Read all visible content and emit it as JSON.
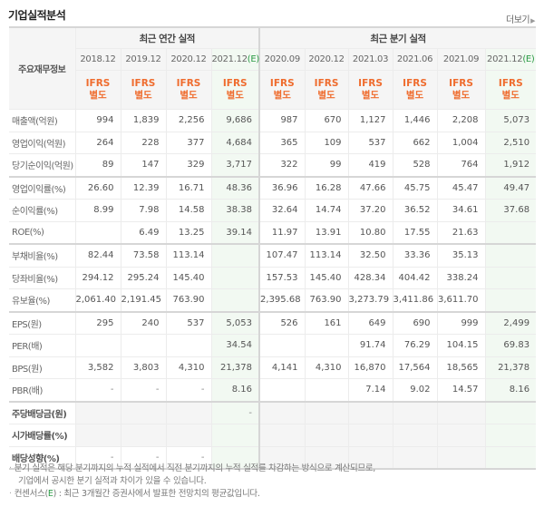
{
  "section": {
    "title": "기업실적분석",
    "more_label": "더보기",
    "more_icon": "triangle-right-icon"
  },
  "table": {
    "corner_label": "주요재무정보",
    "groups": {
      "annual": "최근 연간 실적",
      "quarter": "최근 분기 실적"
    },
    "annual_periods": [
      {
        "label": "2018.12",
        "est": ""
      },
      {
        "label": "2019.12",
        "est": ""
      },
      {
        "label": "2020.12",
        "est": ""
      },
      {
        "label": "2021.12",
        "est": "(E)"
      }
    ],
    "quarter_periods": [
      {
        "label": "2020.09",
        "est": ""
      },
      {
        "label": "2020.12",
        "est": ""
      },
      {
        "label": "2021.03",
        "est": ""
      },
      {
        "label": "2021.06",
        "est": ""
      },
      {
        "label": "2021.09",
        "est": ""
      },
      {
        "label": "2021.12",
        "est": "(E)"
      }
    ],
    "standard": {
      "line1": "IFRS",
      "line2": "별도"
    },
    "rows": [
      {
        "label": "매출액(억원)",
        "values": [
          "994",
          "1,839",
          "2,256",
          "9,686",
          "987",
          "670",
          "1,127",
          "1,446",
          "2,208",
          "5,073"
        ]
      },
      {
        "label": "영업이익(억원)",
        "values": [
          "264",
          "228",
          "377",
          "4,684",
          "365",
          "109",
          "537",
          "662",
          "1,004",
          "2,510"
        ]
      },
      {
        "label": "당기순이익(억원)",
        "values": [
          "89",
          "147",
          "329",
          "3,717",
          "322",
          "99",
          "419",
          "528",
          "764",
          "1,912"
        ]
      },
      {
        "label": "영업이익률(%)",
        "values": [
          "26.60",
          "12.39",
          "16.71",
          "48.36",
          "36.96",
          "16.28",
          "47.66",
          "45.75",
          "45.47",
          "49.47"
        ]
      },
      {
        "label": "순이익률(%)",
        "values": [
          "8.99",
          "7.98",
          "14.58",
          "38.38",
          "32.64",
          "14.74",
          "37.20",
          "36.52",
          "34.61",
          "37.68"
        ]
      },
      {
        "label": "ROE(%)",
        "values": [
          "",
          "6.49",
          "13.25",
          "39.14",
          "11.97",
          "13.91",
          "10.80",
          "17.55",
          "21.63",
          ""
        ]
      },
      {
        "label": "부채비율(%)",
        "values": [
          "82.44",
          "73.58",
          "113.14",
          "",
          "107.47",
          "113.14",
          "32.50",
          "33.36",
          "35.13",
          ""
        ]
      },
      {
        "label": "당좌비율(%)",
        "values": [
          "294.12",
          "295.24",
          "145.40",
          "",
          "157.53",
          "145.40",
          "428.34",
          "404.42",
          "338.24",
          ""
        ]
      },
      {
        "label": "유보율(%)",
        "values": [
          "2,061.40",
          "2,191.45",
          "763.90",
          "",
          "2,395.68",
          "763.90",
          "3,273.79",
          "3,411.86",
          "3,611.70",
          ""
        ]
      },
      {
        "label": "EPS(원)",
        "values": [
          "295",
          "240",
          "537",
          "5,053",
          "526",
          "161",
          "649",
          "690",
          "999",
          "2,499"
        ]
      },
      {
        "label": "PER(배)",
        "values": [
          "",
          "",
          "",
          "34.54",
          "",
          "",
          "91.74",
          "76.29",
          "104.15",
          "69.83"
        ]
      },
      {
        "label": "BPS(원)",
        "values": [
          "3,582",
          "3,803",
          "4,310",
          "21,378",
          "4,141",
          "4,310",
          "16,870",
          "17,564",
          "18,565",
          "21,378"
        ]
      },
      {
        "label": "PBR(배)",
        "values": [
          "-",
          "-",
          "-",
          "8.16",
          "",
          "",
          "7.14",
          "9.02",
          "14.57",
          "8.16"
        ]
      },
      {
        "label": "주당배당금(원)",
        "values": [
          "",
          "",
          "",
          "-",
          "",
          "",
          "",
          "",
          "",
          ""
        ]
      },
      {
        "label": "시가배당률(%)",
        "values": [
          "",
          "",
          "",
          "",
          "",
          "",
          "",
          "",
          "",
          ""
        ]
      },
      {
        "label": "배당성향(%)",
        "values": [
          "-",
          "-",
          "-",
          "",
          "",
          "",
          "",
          "",
          "",
          ""
        ]
      }
    ]
  },
  "notes": {
    "line1": "분기 실적은 해당 분기까지의 누적 실적에서 직전 분기까지의 누적 실적를 차감하는 방식으로 계산되므로,",
    "line2": "기업에서 공시한 분기 실적과 차이가 있을 수 있습니다.",
    "line3_prefix": "컨센서스(",
    "line3_est": "E",
    "line3_suffix": ") : 최근 3개월간 증권사에서 발표한 전망치의 평균값입니다.",
    "bullet": "·"
  },
  "colors": {
    "ifrs_orange": "#ef6c2e",
    "estimate_green": "#2a9a44",
    "estimate_bg": "#f2f9f2",
    "header_bg": "#f5f5f5"
  }
}
